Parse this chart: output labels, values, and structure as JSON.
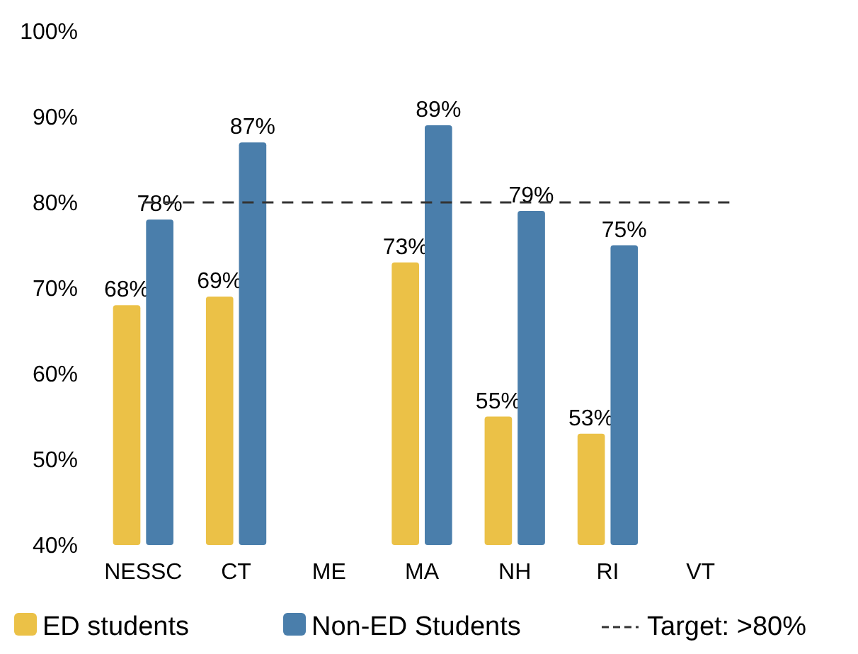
{
  "chart_data": {
    "type": "bar",
    "categories": [
      "NESSC",
      "CT",
      "ME",
      "MA",
      "NH",
      "RI",
      "VT"
    ],
    "series": [
      {
        "name": "ED students",
        "color": "#ebc147",
        "values": [
          68,
          69,
          null,
          73,
          55,
          53,
          null
        ],
        "value_labels": [
          "68%",
          "69%",
          null,
          "73%",
          "55%",
          "53%",
          null
        ]
      },
      {
        "name": "Non-ED Students",
        "color": "#4a7eab",
        "values": [
          78,
          87,
          null,
          89,
          79,
          75,
          null
        ],
        "value_labels": [
          "78%",
          "87%",
          null,
          "89%",
          "79%",
          "75%",
          null
        ]
      }
    ],
    "ylim": [
      40,
      100
    ],
    "yticks": [
      {
        "value": 40,
        "label": "40%"
      },
      {
        "value": 50,
        "label": "50%"
      },
      {
        "value": 60,
        "label": "60%"
      },
      {
        "value": 70,
        "label": "70%"
      },
      {
        "value": 80,
        "label": "80%"
      },
      {
        "value": 90,
        "label": "90%"
      },
      {
        "value": 100,
        "label": "100%"
      }
    ],
    "ref_lines": [
      {
        "axis": "y",
        "value": 80,
        "label": "Target: >80%",
        "color": "#333333",
        "line_style": "dashed"
      }
    ],
    "grid": false,
    "legend": "bottom"
  }
}
